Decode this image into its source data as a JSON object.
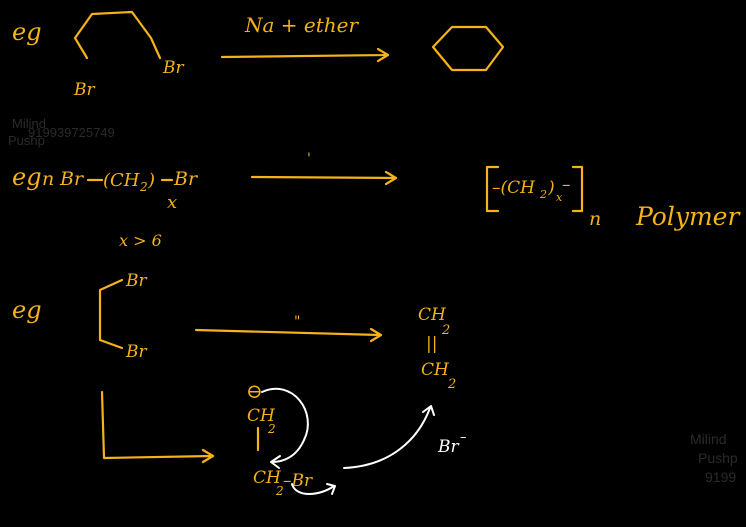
{
  "colors": {
    "background": "#000000",
    "ink": "#f5b21b",
    "arrow_ink": "#ffffff",
    "watermark": "#7a7a7a"
  },
  "watermark": {
    "name_first": "Milind",
    "name_last": "Pushp",
    "phone": "9199",
    "phone_full": "919939725749",
    "phone_right": "9199"
  },
  "example1": {
    "label": "eg",
    "br_top": "Br",
    "br_bottom": "Br",
    "reagent": "Na + ether"
  },
  "example2": {
    "label": "eg",
    "n": "n",
    "br_left": "Br",
    "chain": "(CH",
    "sub2": "2",
    "chain_close": ")",
    "br_right": "Br",
    "x": "x",
    "reagent_mark": "'",
    "product_inner": "–(CH",
    "product_sub2": "2",
    "product_close": ")",
    "product_x": "x",
    "product_dash": "–",
    "product_n": "n",
    "product_label": "Polymer",
    "condition": "x > 6"
  },
  "example3": {
    "label": "eg",
    "br_top": "Br",
    "br_bottom": "Br",
    "reagent_mark": "\"",
    "product_ch_top": "CH",
    "product_sub_top": "2",
    "product_bond": "||",
    "product_ch_bottom": "CH",
    "product_sub_bottom": "2",
    "charge": "⊖",
    "mech_ch_top": "CH",
    "mech_sub_top": "2",
    "mech_bond": "|",
    "mech_ch_bottom": "CH",
    "mech_sub_bottom": "2",
    "mech_br": "–Br",
    "leaving_group": "Br",
    "leaving_charge": "–"
  }
}
